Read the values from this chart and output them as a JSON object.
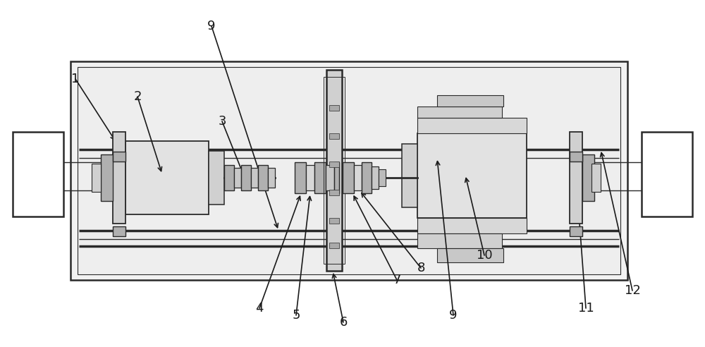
{
  "fig_width": 10.0,
  "fig_height": 4.92,
  "bg_color": "#ffffff",
  "line_color": "#2a2a2a",
  "gray_light": "#e8e8e8",
  "gray_mid": "#d0d0d0",
  "gray_dark": "#b0b0b0",
  "font_size": 13,
  "arrow_color": "#1a1a1a"
}
